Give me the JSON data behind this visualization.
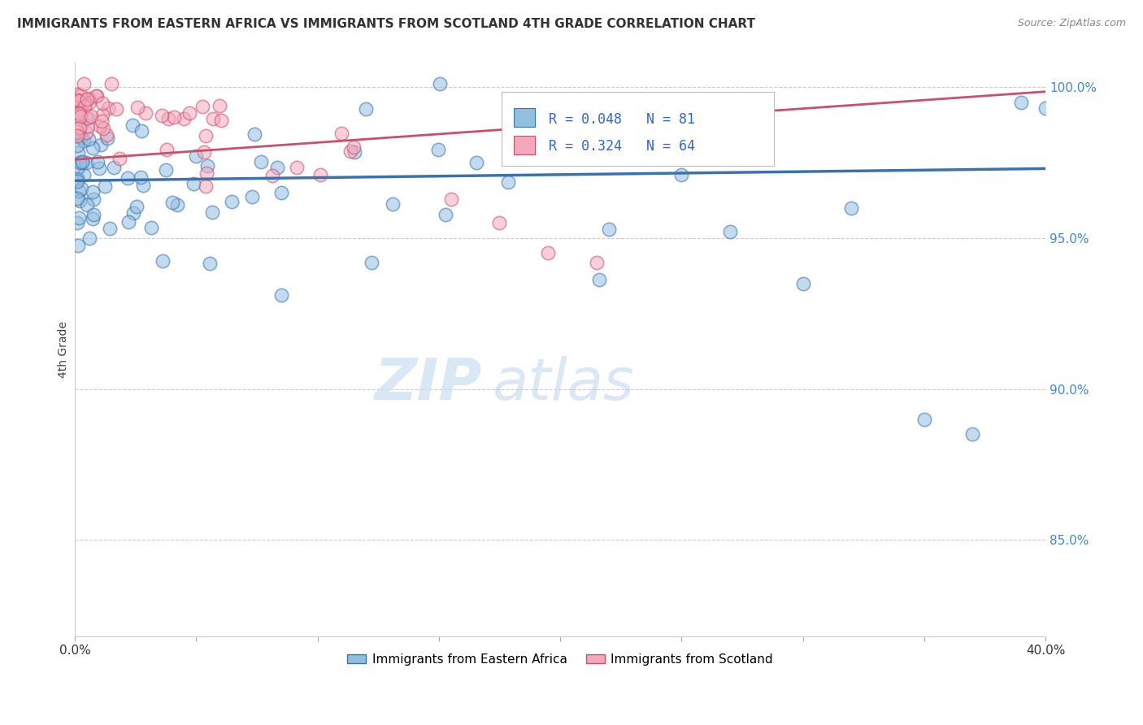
{
  "title": "IMMIGRANTS FROM EASTERN AFRICA VS IMMIGRANTS FROM SCOTLAND 4TH GRADE CORRELATION CHART",
  "source": "Source: ZipAtlas.com",
  "ylabel": "4th Grade",
  "xlim": [
    0.0,
    0.4
  ],
  "ylim": [
    0.818,
    1.008
  ],
  "xticks": [
    0.0,
    0.05,
    0.1,
    0.15,
    0.2,
    0.25,
    0.3,
    0.35,
    0.4
  ],
  "yticks": [
    0.85,
    0.9,
    0.95,
    1.0
  ],
  "yticklabels": [
    "85.0%",
    "90.0%",
    "95.0%",
    "100.0%"
  ],
  "blue_R": 0.048,
  "blue_N": 81,
  "pink_R": 0.324,
  "pink_N": 64,
  "blue_color": "#92BEE0",
  "pink_color": "#F4A8BC",
  "blue_line_color": "#3A72B0",
  "pink_line_color": "#C8506A",
  "background_color": "#FFFFFF",
  "grid_color": "#CCCCCC",
  "legend_label_blue": "Immigrants from Eastern Africa",
  "legend_label_pink": "Immigrants from Scotland",
  "blue_line_x": [
    0.0,
    0.4
  ],
  "blue_line_y": [
    0.969,
    0.973
  ],
  "pink_line_x": [
    0.0,
    0.4
  ],
  "pink_line_y": [
    0.976,
    0.9985
  ]
}
